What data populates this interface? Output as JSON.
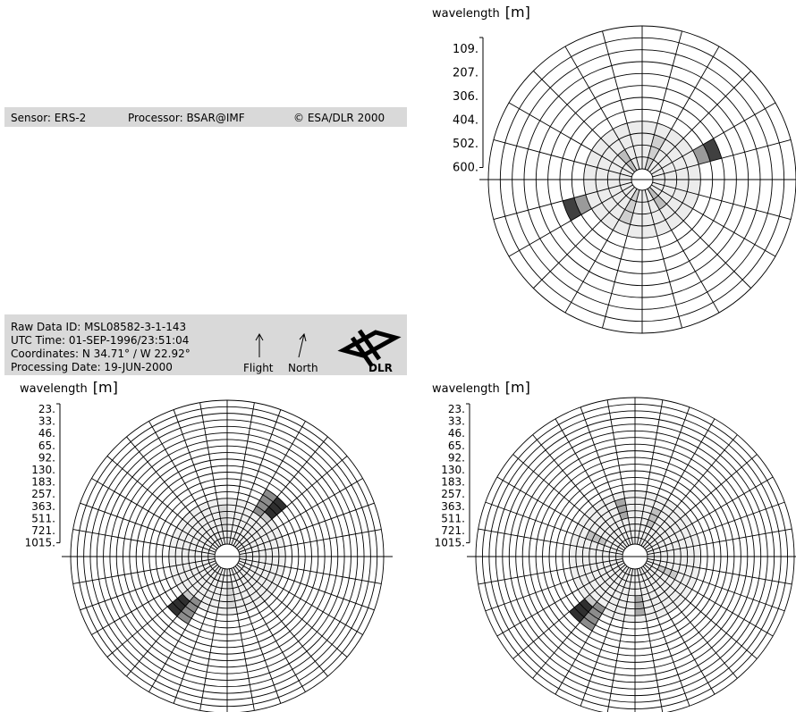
{
  "sar_panel": {
    "header": {
      "sensor": "Sensor: ERS-2",
      "processor": "Processor: BSAR@IMF",
      "copyright": "© ESA/DLR 2000"
    },
    "footer": {
      "raw_data_id": "Raw Data ID: MSL08582-3-1-143",
      "utc_time": "UTC Time: 01-SEP-1996/23:51:04",
      "coordinates": "Coordinates: N 34.71° / W 22.92°",
      "processing_date": "Processing Date: 19-JUN-2000",
      "flight": "Flight",
      "north": "North",
      "logo": "DLR"
    }
  },
  "spectra": [
    {
      "axis_label": "wavelength",
      "unit": "[m]",
      "ticks": [
        "109.",
        "207.",
        "306.",
        "404.",
        "502.",
        "600."
      ]
    },
    {
      "axis_label": "wavelength",
      "unit": "[m]",
      "ticks": [
        "23.",
        "33.",
        "46.",
        "65.",
        "92.",
        "130.",
        "183.",
        "257.",
        "363.",
        "511.",
        "721.",
        "1015."
      ]
    },
    {
      "axis_label": "wavelength",
      "unit": "[m]",
      "ticks": [
        "23.",
        "33.",
        "46.",
        "65.",
        "92.",
        "130.",
        "183.",
        "257.",
        "363.",
        "511.",
        "721.",
        "1015."
      ]
    }
  ]
}
